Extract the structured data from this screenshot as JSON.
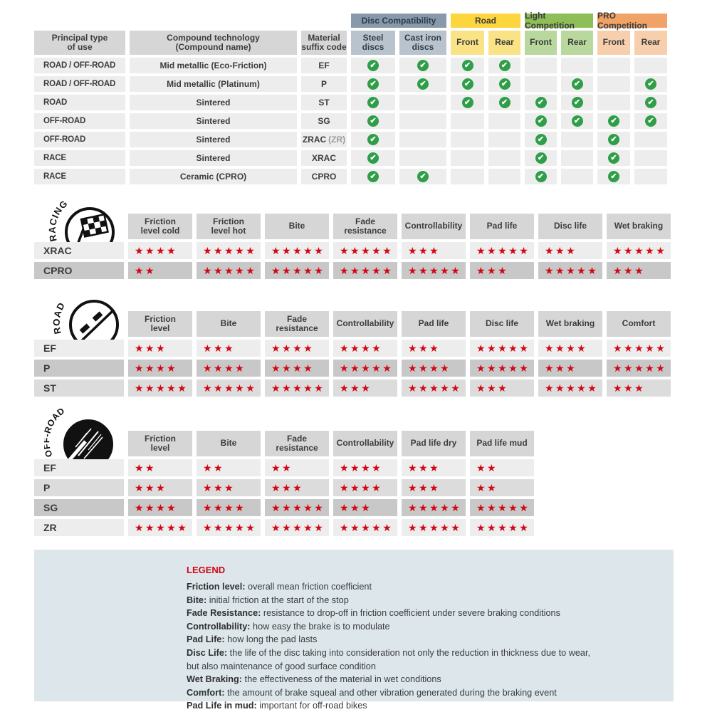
{
  "colors": {
    "star_red": "#d30613",
    "check_green": "#2f9e48",
    "disc_compat_header": "#8899ab",
    "road_header": "#fdd53d",
    "light_comp_header": "#8dbe58",
    "pro_comp_header": "#f1a367",
    "table_header_gray": "#d6d6d6",
    "legend_bg": "#dce6eb"
  },
  "compat": {
    "group_headers": [
      {
        "label": "Disc Compatibility",
        "style": "slate"
      },
      {
        "label": "Road",
        "style": "yellow"
      },
      {
        "label": "Light Competition",
        "style": "green"
      },
      {
        "label": "PRO Competition",
        "style": "orange"
      }
    ],
    "main_columns": [
      "Principal type\nof use",
      "Compound technology\n(Compound name)",
      "Material\nsuffix code"
    ],
    "check_columns": [
      {
        "label": "Steel\ndiscs",
        "style": "slate-light"
      },
      {
        "label": "Cast iron\ndiscs",
        "style": "slate-light"
      },
      {
        "label": "Front",
        "style": "yellow-light"
      },
      {
        "label": "Rear",
        "style": "yellow-light"
      },
      {
        "label": "Front",
        "style": "green-light"
      },
      {
        "label": "Rear",
        "style": "green-light"
      },
      {
        "label": "Front",
        "style": "orange-light"
      },
      {
        "label": "Rear",
        "style": "orange-light"
      }
    ],
    "rows": [
      {
        "use": "ROAD / OFF-ROAD",
        "tech": "Mid metallic (Eco-Friction)",
        "code": "EF",
        "code_suffix": "",
        "checks": [
          1,
          1,
          1,
          1,
          0,
          0,
          0,
          0
        ]
      },
      {
        "use": "ROAD / OFF-ROAD",
        "tech": "Mid metallic (Platinum)",
        "code": "P",
        "code_suffix": "",
        "checks": [
          1,
          1,
          1,
          1,
          0,
          1,
          0,
          1
        ]
      },
      {
        "use": "ROAD",
        "tech": "Sintered",
        "code": "ST",
        "code_suffix": "",
        "checks": [
          1,
          0,
          1,
          1,
          1,
          1,
          0,
          1
        ]
      },
      {
        "use": "OFF-ROAD",
        "tech": "Sintered",
        "code": "SG",
        "code_suffix": "",
        "checks": [
          1,
          0,
          0,
          0,
          1,
          1,
          1,
          1
        ]
      },
      {
        "use": "OFF-ROAD",
        "tech": "Sintered",
        "code": "ZRAC",
        "code_suffix": "(ZR)",
        "checks": [
          1,
          0,
          0,
          0,
          1,
          0,
          1,
          0
        ]
      },
      {
        "use": "RACE",
        "tech": "Sintered",
        "code": "XRAC",
        "code_suffix": "",
        "checks": [
          1,
          0,
          0,
          0,
          1,
          0,
          1,
          0
        ]
      },
      {
        "use": "RACE",
        "tech": "Ceramic (CPRO)",
        "code": "CPRO",
        "code_suffix": "",
        "checks": [
          1,
          1,
          0,
          0,
          1,
          0,
          1,
          0
        ]
      }
    ]
  },
  "sections": {
    "racing": {
      "icon_label": "RACING",
      "headers": [
        "Friction\nlevel cold",
        "Friction\nlevel hot",
        "Bite",
        "Fade\nresistance",
        "Controllability",
        "Pad life",
        "Disc life",
        "Wet braking"
      ],
      "rows": [
        {
          "code": "XRAC",
          "shade": "light",
          "stars": [
            4,
            5,
            5,
            5,
            3,
            5,
            3,
            5
          ]
        },
        {
          "code": "CPRO",
          "shade": "dark",
          "stars": [
            2,
            5,
            5,
            5,
            5,
            3,
            5,
            3
          ]
        }
      ]
    },
    "road": {
      "icon_label": "ROAD",
      "headers": [
        "Friction\nlevel",
        "Bite",
        "Fade\nresistance",
        "Controllability",
        "Pad life",
        "Disc life",
        "Wet braking",
        "Comfort"
      ],
      "rows": [
        {
          "code": "EF",
          "shade": "light",
          "stars": [
            3,
            3,
            4,
            4,
            3,
            5,
            4,
            5
          ]
        },
        {
          "code": "P",
          "shade": "dark",
          "stars": [
            4,
            4,
            4,
            5,
            4,
            5,
            3,
            5
          ]
        },
        {
          "code": "ST",
          "shade": "mid",
          "stars": [
            5,
            5,
            5,
            3,
            5,
            3,
            5,
            3
          ]
        }
      ]
    },
    "offroad": {
      "icon_label": "OFF-ROAD",
      "headers": [
        "Friction\nlevel",
        "Bite",
        "Fade\nresistance",
        "Controllability",
        "Pad life dry",
        "Pad life mud"
      ],
      "rows": [
        {
          "code": "EF",
          "shade": "light",
          "stars": [
            2,
            2,
            2,
            4,
            3,
            2
          ]
        },
        {
          "code": "P",
          "shade": "mid",
          "stars": [
            3,
            3,
            3,
            4,
            3,
            2
          ]
        },
        {
          "code": "SG",
          "shade": "dark",
          "stars": [
            4,
            4,
            5,
            3,
            5,
            5
          ]
        },
        {
          "code": "ZR",
          "shade": "light",
          "stars": [
            5,
            5,
            5,
            5,
            5,
            5
          ]
        }
      ]
    }
  },
  "legend": {
    "title": "LEGEND",
    "entries": [
      {
        "term": "Friction level",
        "desc": "overall mean friction coefficient"
      },
      {
        "term": "Bite",
        "desc": "initial friction at the start of the stop"
      },
      {
        "term": "Fade Resistance",
        "desc": "resistance to drop-off in friction coefficient under severe braking conditions"
      },
      {
        "term": "Controllability",
        "desc": "how easy the brake is to modulate"
      },
      {
        "term": "Pad Life",
        "desc": "how long the pad lasts"
      },
      {
        "term": "Disc Life",
        "desc": "the life of the disc taking into consideration not only the reduction in thickness due to wear,"
      },
      {
        "term": "",
        "desc": "but also maintenance of good surface condition"
      },
      {
        "term": "Wet Braking",
        "desc": "the effectiveness of the material in wet conditions"
      },
      {
        "term": "Comfort",
        "desc": "the amount of brake squeal and other vibration generated during the braking event"
      },
      {
        "term": "Pad Life in mud",
        "desc": "important for off-road bikes"
      }
    ]
  }
}
